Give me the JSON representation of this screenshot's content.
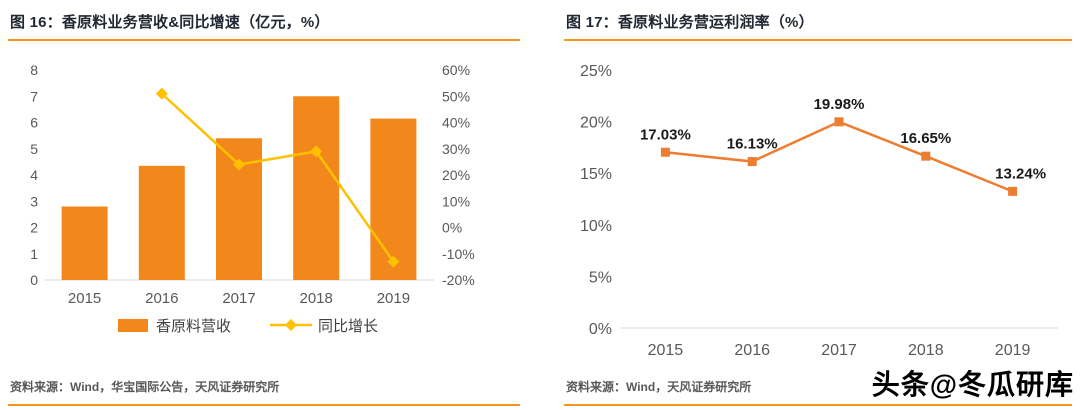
{
  "figure16": {
    "title": "图 16：香原料业务营收&同比增速（亿元，%）",
    "source": "资料来源：Wind，华宝国际公告，天风证券研究所"
  },
  "figure17": {
    "title": "图 17：香原料业务营运利润率（%）",
    "source": "资料来源：Wind，天风证券研究所"
  },
  "watermark": "头条@冬瓜研库",
  "colors": {
    "bar": "#F2871B",
    "line_gold": "#FFC000",
    "line_orange": "#ED7D31",
    "rule": "#F7941E",
    "axis_text": "#595959",
    "title_text": "#222833",
    "legend_text": "#404040",
    "data_label": "#1A1A1A",
    "baseline": "#D9D9D9"
  },
  "chart_data": [
    {
      "type": "bar",
      "title": "香原料业务营收&同比增速（亿元，%）",
      "categories": [
        "2015",
        "2016",
        "2017",
        "2018",
        "2019"
      ],
      "series": [
        {
          "name": "香原料营收",
          "type": "bar",
          "axis": "left",
          "values": [
            2.8,
            4.35,
            5.4,
            7.0,
            6.15
          ]
        },
        {
          "name": "同比增长",
          "type": "line",
          "axis": "right",
          "values": [
            null,
            51,
            24,
            29,
            -13
          ]
        }
      ],
      "left_axis": {
        "min": 0,
        "max": 8,
        "ticks": [
          "0",
          "1",
          "2",
          "3",
          "4",
          "5",
          "6",
          "7",
          "8"
        ]
      },
      "right_axis": {
        "min": -20,
        "max": 60,
        "ticks": [
          "-20%",
          "-10%",
          "0%",
          "10%",
          "20%",
          "30%",
          "40%",
          "50%",
          "60%"
        ]
      },
      "legend_position": "bottom",
      "grid": false
    },
    {
      "type": "line",
      "title": "香原料业务营运利润率（%）",
      "categories": [
        "2015",
        "2016",
        "2017",
        "2018",
        "2019"
      ],
      "values": [
        17.03,
        16.13,
        19.98,
        16.65,
        13.24
      ],
      "data_labels": [
        "17.03%",
        "16.13%",
        "19.98%",
        "16.65%",
        "13.24%"
      ],
      "y_axis": {
        "min": 0,
        "max": 25,
        "ticks": [
          "0%",
          "5%",
          "10%",
          "15%",
          "20%",
          "25%"
        ]
      },
      "legend_position": "none",
      "grid": false
    }
  ]
}
